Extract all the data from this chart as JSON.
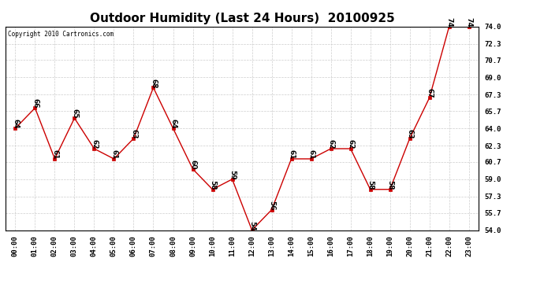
{
  "title": "Outdoor Humidity (Last 24 Hours)  20100925",
  "copyright": "Copyright 2010 Cartronics.com",
  "hours": [
    "00:00",
    "01:00",
    "02:00",
    "03:00",
    "04:00",
    "05:00",
    "06:00",
    "07:00",
    "08:00",
    "09:00",
    "10:00",
    "11:00",
    "12:00",
    "13:00",
    "14:00",
    "15:00",
    "16:00",
    "17:00",
    "18:00",
    "19:00",
    "20:00",
    "21:00",
    "22:00",
    "23:00"
  ],
  "values": [
    64,
    66,
    61,
    65,
    62,
    61,
    63,
    68,
    64,
    60,
    58,
    59,
    54,
    56,
    61,
    61,
    62,
    62,
    58,
    58,
    63,
    67,
    74,
    74
  ],
  "ylim_min": 54.0,
  "ylim_max": 74.0,
  "yticks": [
    54.0,
    55.7,
    57.3,
    59.0,
    60.7,
    62.3,
    64.0,
    65.7,
    67.3,
    69.0,
    70.7,
    72.3,
    74.0
  ],
  "line_color": "#cc0000",
  "marker_color": "#cc0000",
  "bg_color": "#ffffff",
  "grid_color": "#c8c8c8",
  "title_fontsize": 11,
  "tick_fontsize": 6.5,
  "annotation_fontsize": 6.5
}
